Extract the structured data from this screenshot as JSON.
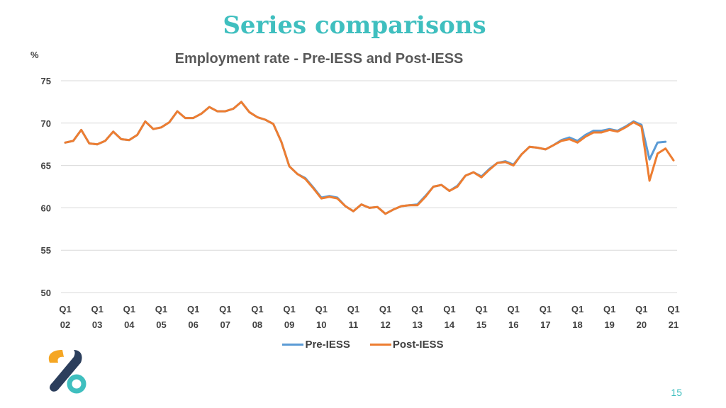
{
  "slide": {
    "title": "Series comparisons",
    "page_number": "15"
  },
  "colors": {
    "title": "#3fbfbf",
    "pre": "#5b9bd5",
    "post": "#ed7d31",
    "logo_orange": "#f5a623",
    "logo_navy": "#2b3e5c",
    "logo_teal": "#3fbfbf"
  },
  "chart_data": {
    "type": "line",
    "title": "Employment rate - Pre-IESS and Post-IESS",
    "y_unit": "%",
    "ylim": [
      50,
      75
    ],
    "yticks": [
      50,
      55,
      60,
      65,
      70,
      75
    ],
    "grid": true,
    "legend_position": "bottom",
    "x_tick_labels": [
      {
        "q": "Q1",
        "y": "02"
      },
      {
        "q": "Q1",
        "y": "03"
      },
      {
        "q": "Q1",
        "y": "04"
      },
      {
        "q": "Q1",
        "y": "05"
      },
      {
        "q": "Q1",
        "y": "06"
      },
      {
        "q": "Q1",
        "y": "07"
      },
      {
        "q": "Q1",
        "y": "08"
      },
      {
        "q": "Q1",
        "y": "09"
      },
      {
        "q": "Q1",
        "y": "10"
      },
      {
        "q": "Q1",
        "y": "11"
      },
      {
        "q": "Q1",
        "y": "12"
      },
      {
        "q": "Q1",
        "y": "13"
      },
      {
        "q": "Q1",
        "y": "14"
      },
      {
        "q": "Q1",
        "y": "15"
      },
      {
        "q": "Q1",
        "y": "16"
      },
      {
        "q": "Q1",
        "y": "17"
      },
      {
        "q": "Q1",
        "y": "18"
      },
      {
        "q": "Q1",
        "y": "19"
      },
      {
        "q": "Q1",
        "y": "20"
      },
      {
        "q": "Q1",
        "y": "21"
      }
    ],
    "x_start": "2002 Q1",
    "series": [
      {
        "name": "Pre-IESS",
        "values": [
          67.7,
          67.9,
          69.2,
          67.6,
          67.5,
          67.9,
          69.0,
          68.1,
          68.0,
          68.6,
          70.2,
          69.3,
          69.5,
          70.1,
          71.4,
          70.6,
          70.6,
          71.1,
          71.9,
          71.4,
          71.4,
          71.7,
          72.5,
          71.3,
          70.7,
          70.4,
          69.9,
          67.8,
          64.9,
          64.0,
          63.5,
          62.4,
          61.2,
          61.4,
          61.2,
          60.2,
          59.6,
          60.4,
          60.0,
          60.1,
          59.3,
          59.8,
          60.2,
          60.3,
          60.4,
          61.4,
          62.5,
          62.7,
          62.0,
          62.6,
          63.8,
          64.2,
          63.7,
          64.6,
          65.3,
          65.5,
          65.1,
          66.3,
          67.2,
          67.1,
          66.9,
          67.4,
          68.0,
          68.3,
          67.9,
          68.6,
          69.1,
          69.1,
          69.3,
          69.1,
          69.6,
          70.2,
          69.8,
          65.7,
          67.7,
          67.8
        ],
        "color": "#5b9bd5"
      },
      {
        "name": "Post-IESS",
        "values": [
          67.7,
          67.9,
          69.2,
          67.6,
          67.5,
          67.9,
          69.0,
          68.1,
          68.0,
          68.6,
          70.2,
          69.3,
          69.5,
          70.1,
          71.4,
          70.6,
          70.6,
          71.1,
          71.9,
          71.4,
          71.4,
          71.7,
          72.5,
          71.3,
          70.7,
          70.4,
          69.9,
          67.8,
          64.9,
          64.0,
          63.4,
          62.3,
          61.1,
          61.3,
          61.1,
          60.2,
          59.6,
          60.4,
          60.0,
          60.1,
          59.3,
          59.8,
          60.2,
          60.3,
          60.3,
          61.3,
          62.5,
          62.7,
          62.0,
          62.5,
          63.8,
          64.2,
          63.6,
          64.5,
          65.3,
          65.4,
          65.0,
          66.3,
          67.2,
          67.1,
          66.9,
          67.4,
          67.9,
          68.1,
          67.7,
          68.4,
          68.9,
          68.9,
          69.2,
          69.0,
          69.5,
          70.1,
          69.6,
          63.2,
          66.4,
          67.0,
          65.6
        ],
        "color": "#ed7d31"
      }
    ]
  }
}
